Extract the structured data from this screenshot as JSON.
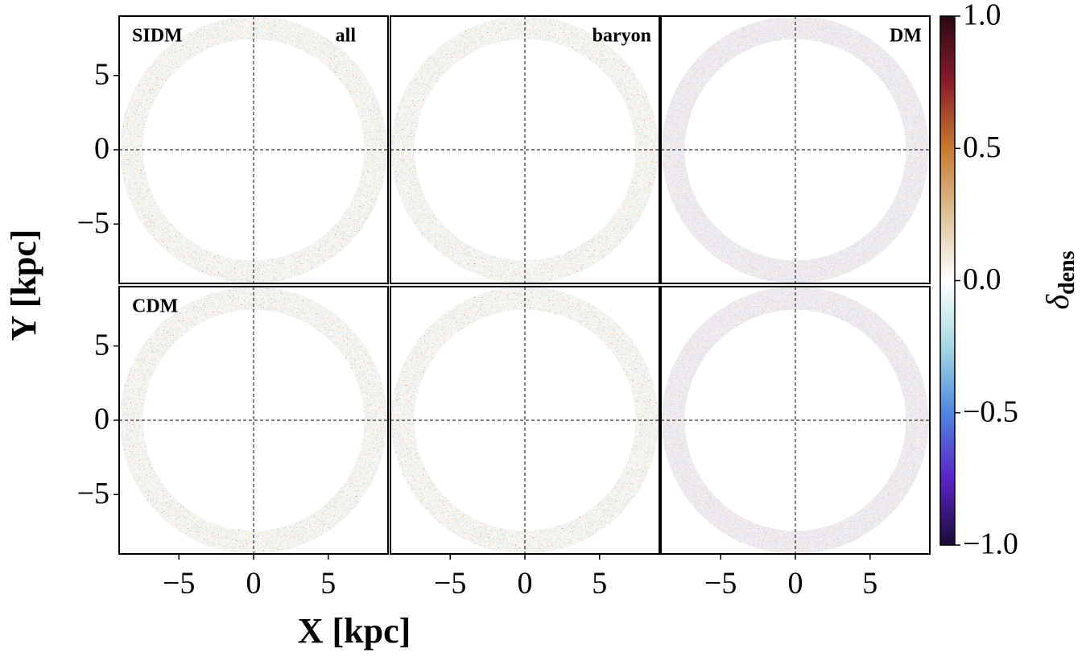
{
  "chart_data": {
    "type": "ring-map-grid",
    "xlabel": "X [kpc]",
    "ylabel": "Y [kpc]",
    "xlim": [
      -9,
      9
    ],
    "ylim": [
      -9,
      9
    ],
    "xticks": [
      {
        "value": -5,
        "label": "−5"
      },
      0,
      5
    ],
    "yticks": [
      {
        "value": -5,
        "label": "−5"
      },
      0,
      5
    ],
    "panels": [
      {
        "left": "SIDM",
        "right": "all"
      },
      {
        "right": "baryon"
      },
      {
        "right": "DM"
      },
      {
        "left": "CDM"
      },
      {},
      {}
    ],
    "colorbar": {
      "label": {
        "symbol": "δ",
        "subscript": "dens"
      },
      "lim": [
        -1,
        1
      ],
      "ticks": [
        {
          "value": 1,
          "label": "1.0"
        },
        {
          "value": 0.5,
          "label": "0.5"
        },
        {
          "value": 0,
          "label": "0.0"
        },
        {
          "value": -0.5,
          "label": "−0.5"
        },
        {
          "value": -1,
          "label": "−1.0"
        }
      ],
      "colormap": [
        "#1b0c36",
        "#5a22c8",
        "#4f86e0",
        "#a6d9e2",
        "#ffffff",
        "#dcc29a",
        "#c87a2e",
        "#8a1b2c",
        "#2a0a12"
      ]
    }
  }
}
